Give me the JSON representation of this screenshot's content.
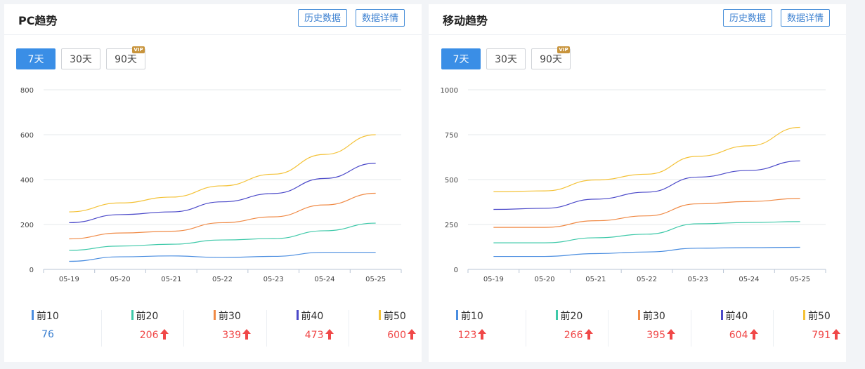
{
  "colors": {
    "accent": "#3a8ee6",
    "up": "#f04848",
    "neutral_value": "#3a7fd0",
    "series": [
      "#4a8de0",
      "#3ec9a9",
      "#f08a45",
      "#4b49c9",
      "#f4c237"
    ]
  },
  "pc": {
    "title": "PC趋势",
    "btn_history": "历史数据",
    "btn_detail": "数据详情",
    "ranges": [
      "7天",
      "30天",
      "90天"
    ],
    "vip": "VIP",
    "legend": [
      {
        "name": "前10",
        "value": "76",
        "up": false
      },
      {
        "name": "前20",
        "value": "206",
        "up": true
      },
      {
        "name": "前30",
        "value": "339",
        "up": true
      },
      {
        "name": "前40",
        "value": "473",
        "up": true
      },
      {
        "name": "前50",
        "value": "600",
        "up": true
      }
    ]
  },
  "mobile": {
    "title": "移动趋势",
    "btn_history": "历史数据",
    "btn_detail": "数据详情",
    "ranges": [
      "7天",
      "30天",
      "90天"
    ],
    "vip": "VIP",
    "legend": [
      {
        "name": "前10",
        "value": "123",
        "up": true
      },
      {
        "name": "前20",
        "value": "266",
        "up": true
      },
      {
        "name": "前30",
        "value": "395",
        "up": true
      },
      {
        "name": "前40",
        "value": "604",
        "up": true
      },
      {
        "name": "前50",
        "value": "791",
        "up": true
      }
    ]
  },
  "chart_data": [
    {
      "type": "line",
      "x": [
        "05-19",
        "05-20",
        "05-21",
        "05-22",
        "05-23",
        "05-24",
        "05-25"
      ],
      "ylim": [
        0,
        800
      ],
      "yticks": [
        0,
        200,
        400,
        600,
        800
      ],
      "grid": true,
      "series": [
        {
          "name": "前10",
          "values": [
            36,
            56,
            60,
            53,
            58,
            76,
            76
          ]
        },
        {
          "name": "前20",
          "values": [
            85,
            104,
            112,
            131,
            137,
            172,
            206
          ]
        },
        {
          "name": "前30",
          "values": [
            136,
            162,
            170,
            208,
            234,
            287,
            339
          ]
        },
        {
          "name": "前40",
          "values": [
            208,
            244,
            256,
            301,
            338,
            405,
            473
          ]
        },
        {
          "name": "前50",
          "values": [
            256,
            296,
            322,
            372,
            424,
            512,
            600
          ]
        }
      ]
    },
    {
      "type": "line",
      "x": [
        "05-19",
        "05-20",
        "05-21",
        "05-22",
        "05-23",
        "05-24",
        "05-25"
      ],
      "ylim": [
        0,
        1000
      ],
      "yticks": [
        0,
        250,
        500,
        750,
        1000
      ],
      "grid": true,
      "series": [
        {
          "name": "前10",
          "values": [
            72,
            72,
            88,
            97,
            118,
            121,
            123
          ]
        },
        {
          "name": "前20",
          "values": [
            148,
            148,
            176,
            196,
            254,
            261,
            266
          ]
        },
        {
          "name": "前30",
          "values": [
            234,
            234,
            271,
            298,
            365,
            378,
            395
          ]
        },
        {
          "name": "前40",
          "values": [
            334,
            340,
            391,
            430,
            514,
            551,
            604
          ]
        },
        {
          "name": "前50",
          "values": [
            432,
            437,
            498,
            530,
            630,
            688,
            791
          ]
        }
      ]
    }
  ]
}
